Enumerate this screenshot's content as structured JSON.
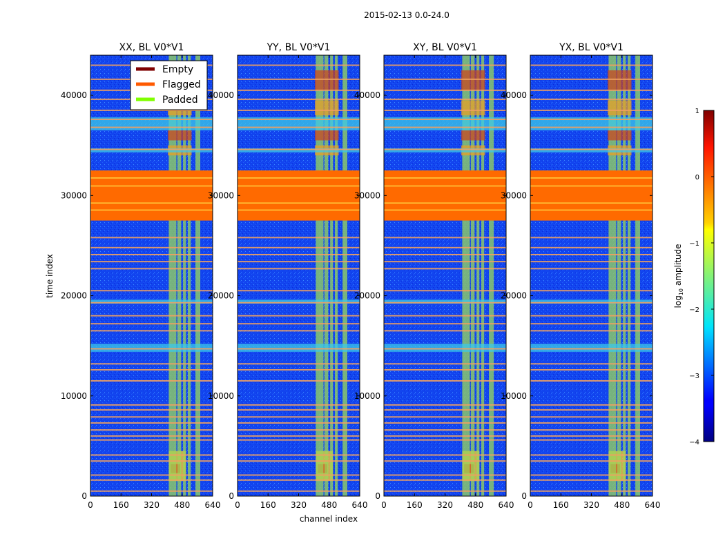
{
  "figure": {
    "suptitle": "2015-02-13 0.0-24.0",
    "xlabel": "channel index",
    "ylabel": "time index"
  },
  "colors": {
    "background_low": "#0f3ff0",
    "flagged": "#ff6a00",
    "empty": "#7f0000",
    "padded": "#80ff00",
    "line_stripe": "#f0a060"
  },
  "chart_data": {
    "type": "heatmap",
    "xlim": [
      0,
      640
    ],
    "ylim": [
      0,
      44000
    ],
    "xticks": [
      0,
      160,
      320,
      480,
      640
    ],
    "yticks": [
      0,
      10000,
      20000,
      30000,
      40000
    ],
    "panels": [
      {
        "title": "XX, BL V0*V1"
      },
      {
        "title": "YY, BL V0*V1"
      },
      {
        "title": "XY, BL V0*V1"
      },
      {
        "title": "YX, BL V0*V1"
      }
    ],
    "flagged_block": [
      27500,
      32500
    ],
    "flagged_rows": [
      500,
      1600,
      2100,
      3500,
      4100,
      5600,
      6000,
      6600,
      7300,
      7900,
      8600,
      9100,
      11500,
      12600,
      13200,
      14700,
      16500,
      17200,
      18000,
      19300,
      20500,
      22700,
      23400,
      24100,
      24800,
      25800,
      34600,
      36800,
      37600,
      38500,
      39600,
      40500,
      41600,
      43000
    ],
    "bright_columns": [
      [
        410,
        450
      ],
      [
        455,
        475
      ],
      [
        485,
        500
      ],
      [
        510,
        525
      ],
      [
        550,
        575
      ]
    ],
    "legend": [
      {
        "label": "Empty",
        "color": "#7f0000"
      },
      {
        "label": "Flagged",
        "color": "#ff5a00"
      },
      {
        "label": "Padded",
        "color": "#80ff00"
      }
    ],
    "colorbar": {
      "label_prefix": "log",
      "label_sub": "10",
      "label_suffix": " amplitude",
      "range": [
        -4,
        1
      ],
      "ticks": [
        "1",
        "0",
        "−1",
        "−2",
        "−3",
        "−4"
      ]
    }
  }
}
